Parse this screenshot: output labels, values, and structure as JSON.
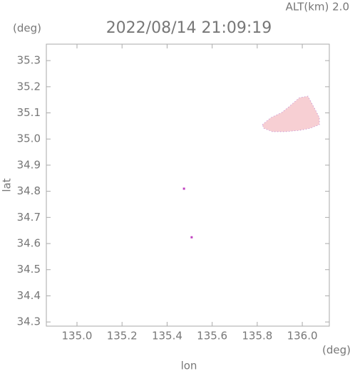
{
  "chart_data": {
    "type": "polygon",
    "title": "2022/08/14 21:09:19",
    "altitude_label": "ALT(km) 2.0",
    "y_unit": "(deg)",
    "x_unit": "(deg)",
    "x_label": "lon",
    "y_label": "lat",
    "xlim": [
      134.864,
      136.12
    ],
    "ylim": [
      34.284,
      35.363
    ],
    "xticks": [
      {
        "value": 135.0,
        "label": "135.0"
      },
      {
        "value": 135.2,
        "label": "135.2"
      },
      {
        "value": 135.4,
        "label": "135.4"
      },
      {
        "value": 135.6,
        "label": "135.6"
      },
      {
        "value": 135.8,
        "label": "135.8"
      },
      {
        "value": 136.0,
        "label": "136.0"
      }
    ],
    "yticks": [
      {
        "value": 34.3,
        "label": "34.3"
      },
      {
        "value": 34.4,
        "label": "34.4"
      },
      {
        "value": 34.5,
        "label": "34.5"
      },
      {
        "value": 34.6,
        "label": "34.6"
      },
      {
        "value": 34.7,
        "label": "34.7"
      },
      {
        "value": 34.8,
        "label": "34.8"
      },
      {
        "value": 34.9,
        "label": "34.9"
      },
      {
        "value": 35.0,
        "label": "35.0"
      },
      {
        "value": 35.1,
        "label": "35.1"
      },
      {
        "value": 35.2,
        "label": "35.2"
      },
      {
        "value": 35.3,
        "label": "35.3"
      }
    ],
    "series": [
      {
        "color": "#f7cfd3",
        "shape": "area",
        "x": [
          135.823,
          135.861,
          135.908,
          135.94,
          135.987,
          136.025,
          136.051,
          136.076,
          136.076,
          136.035,
          135.987,
          135.924,
          135.867,
          135.829
        ],
        "y": [
          35.055,
          35.082,
          35.101,
          35.123,
          35.158,
          35.164,
          35.123,
          35.082,
          35.055,
          35.041,
          35.033,
          35.028,
          35.028,
          35.041
        ]
      },
      {
        "color": "#c040c0",
        "shape": "dots",
        "x": [
          135.475,
          135.509
        ],
        "y": [
          34.81,
          34.624
        ]
      }
    ]
  }
}
